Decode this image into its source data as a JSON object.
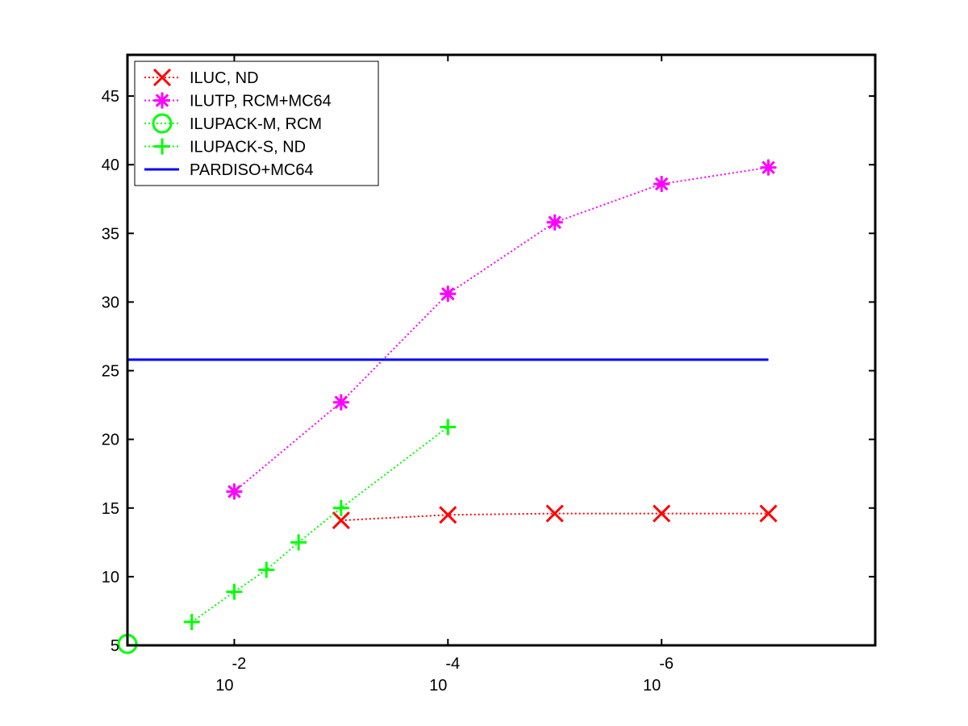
{
  "chart_data": {
    "type": "line",
    "title": "",
    "xlabel": "",
    "ylabel": "",
    "x_scale": "log",
    "x_direction": "decreasing",
    "xlim": [
      0.1,
      1e-08
    ],
    "ylim": [
      5,
      48
    ],
    "grid": false,
    "legend_position": "top-left",
    "x_ticks": [
      {
        "value": 0.01,
        "base": "10",
        "exponent": "-2"
      },
      {
        "value": 0.0001,
        "base": "10",
        "exponent": "-4"
      },
      {
        "value": 1e-06,
        "base": "10",
        "exponent": "-6"
      }
    ],
    "y_ticks": [
      {
        "value": 5,
        "label": "5"
      },
      {
        "value": 10,
        "label": "10"
      },
      {
        "value": 15,
        "label": "15"
      },
      {
        "value": 20,
        "label": "20"
      },
      {
        "value": 25,
        "label": "25"
      },
      {
        "value": 30,
        "label": "30"
      },
      {
        "value": 35,
        "label": "35"
      },
      {
        "value": 40,
        "label": "40"
      },
      {
        "value": 45,
        "label": "45"
      }
    ],
    "series": [
      {
        "name": "ILUC,  ND",
        "color": "#ff0000",
        "marker": "x",
        "line_style": "dotted",
        "x": [
          0.001,
          0.0001,
          1e-05,
          1e-06,
          1e-07
        ],
        "y": [
          14.1,
          14.5,
          14.6,
          14.6,
          14.6
        ]
      },
      {
        "name": "ILUTP, RCM+MC64",
        "color": "#ff00ff",
        "marker": "asterisk",
        "line_style": "dotted",
        "x": [
          0.01,
          0.001,
          0.0001,
          1e-05,
          1e-06,
          1e-07
        ],
        "y": [
          16.2,
          22.7,
          30.6,
          35.8,
          38.6,
          39.8
        ]
      },
      {
        "name": "ILUPACK-M, RCM",
        "color": "#00ff00",
        "marker": "circle",
        "line_style": "dotted",
        "x": [
          0.1
        ],
        "y": [
          5.1
        ]
      },
      {
        "name": "ILUPACK-S, ND",
        "color": "#00ff00",
        "marker": "plus",
        "line_style": "dotted",
        "x": [
          0.025,
          0.01,
          0.005,
          0.0025,
          0.001,
          0.0001
        ],
        "y": [
          6.7,
          8.9,
          10.5,
          12.5,
          15.0,
          20.9
        ]
      },
      {
        "name": "PARDISO+MC64",
        "color": "#0000ff",
        "marker": "none",
        "line_style": "solid",
        "x": [
          0.1,
          1e-07
        ],
        "y": [
          25.8,
          25.8
        ]
      }
    ]
  }
}
